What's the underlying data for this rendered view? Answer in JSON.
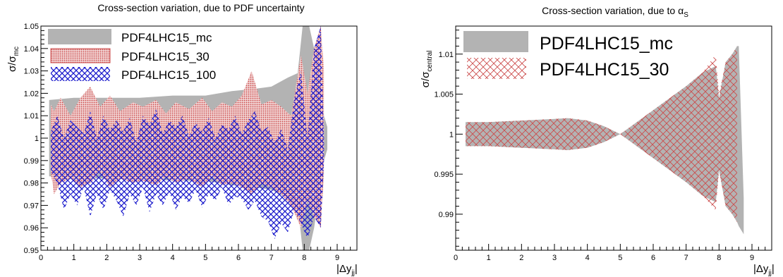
{
  "chart_data": [
    {
      "type": "area",
      "title": "Cross-section variation, due to PDF uncertainty",
      "xlabel": "|Δy_jj|",
      "ylabel": "σ/σ_mc",
      "xlim": [
        0,
        9.6
      ],
      "ylim": [
        0.95,
        1.05
      ],
      "x_ticks": [
        "0",
        "1",
        "2",
        "3",
        "4",
        "5",
        "6",
        "7",
        "8",
        "9"
      ],
      "y_ticks": [
        "0.95",
        "0.96",
        "0.97",
        "0.98",
        "0.99",
        "1",
        "1.01",
        "1.02",
        "1.03",
        "1.04",
        "1.05"
      ],
      "legend_position": "top-left",
      "series": [
        {
          "name": "PDF4LHC15_mc",
          "fill": "#b3b3b3",
          "pattern": "solid",
          "x": [
            0.25,
            1.0,
            2.0,
            3.0,
            4.0,
            5.0,
            5.8,
            6.5,
            7.0,
            7.5,
            7.8,
            7.95,
            8.05,
            8.15,
            8.3,
            8.45,
            8.6,
            8.7
          ],
          "high": [
            1.017,
            1.018,
            1.018,
            1.018,
            1.019,
            1.019,
            1.021,
            1.022,
            1.023,
            1.027,
            1.029,
            1.05,
            1.05,
            1.05,
            1.04,
            1.025,
            1.01,
            1.005
          ],
          "low": [
            0.983,
            0.982,
            0.982,
            0.982,
            0.981,
            0.981,
            0.979,
            0.978,
            0.977,
            0.973,
            0.971,
            0.95,
            0.95,
            0.95,
            0.96,
            0.975,
            0.99,
            0.995
          ]
        },
        {
          "name": "PDF4LHC15_30",
          "fill": "#cc4c4c",
          "pattern": "dots",
          "x": [
            0.3,
            0.4,
            0.6,
            0.9,
            1.2,
            1.5,
            1.8,
            2.1,
            2.4,
            2.8,
            3.1,
            3.5,
            3.8,
            4.1,
            4.5,
            4.9,
            5.2,
            5.5,
            5.8,
            6.1,
            6.4,
            6.7,
            7.0,
            7.3,
            7.6,
            7.9,
            8.1,
            8.3,
            8.5,
            8.6
          ],
          "high": [
            1.015,
            1.012,
            1.018,
            1.01,
            1.018,
            1.023,
            1.014,
            1.019,
            1.012,
            1.016,
            1.014,
            1.017,
            1.011,
            1.016,
            1.013,
            1.018,
            1.012,
            1.016,
            1.014,
            1.019,
            1.03,
            1.015,
            1.017,
            1.014,
            1.01,
            1.037,
            1.02,
            1.04,
            1.05,
            1.03
          ],
          "low": [
            0.985,
            0.975,
            0.98,
            0.982,
            0.978,
            0.98,
            0.985,
            0.978,
            0.982,
            0.98,
            0.981,
            0.979,
            0.983,
            0.98,
            0.982,
            0.978,
            0.983,
            0.979,
            0.98,
            0.978,
            0.975,
            0.98,
            0.978,
            0.975,
            0.97,
            0.96,
            0.972,
            0.965,
            0.96,
            0.985
          ]
        },
        {
          "name": "PDF4LHC15_100",
          "fill": "#1a1acc",
          "pattern": "crosshatch",
          "x": [
            0.3,
            0.5,
            0.7,
            0.9,
            1.1,
            1.3,
            1.5,
            1.7,
            1.9,
            2.1,
            2.3,
            2.5,
            2.7,
            2.9,
            3.1,
            3.3,
            3.5,
            3.7,
            3.9,
            4.1,
            4.3,
            4.5,
            4.7,
            4.9,
            5.1,
            5.3,
            5.5,
            5.7,
            5.9,
            6.1,
            6.3,
            6.5,
            6.7,
            6.9,
            7.1,
            7.3,
            7.5,
            7.7,
            7.9,
            8.1,
            8.3,
            8.5,
            8.6
          ],
          "high": [
            1.003,
            1.01,
            1.0,
            1.008,
            1.005,
            1.002,
            1.012,
            1.0,
            1.01,
            1.004,
            1.008,
            1.003,
            1.009,
            0.998,
            1.01,
            1.006,
            1.013,
            1.002,
            1.008,
            1.005,
            1.01,
            1.001,
            1.007,
            1.003,
            1.009,
            1.0,
            1.006,
            1.004,
            1.01,
            1.002,
            1.008,
            1.012,
            1.003,
            1.005,
            0.998,
            1.004,
            0.995,
            1.018,
            1.03,
            1.0,
            1.04,
            1.05,
            1.0
          ],
          "low": [
            0.985,
            0.98,
            0.968,
            0.975,
            0.97,
            0.978,
            0.965,
            0.975,
            0.968,
            0.977,
            0.972,
            0.965,
            0.975,
            0.97,
            0.978,
            0.967,
            0.975,
            0.97,
            0.976,
            0.968,
            0.974,
            0.971,
            0.977,
            0.969,
            0.975,
            0.972,
            0.978,
            0.97,
            0.974,
            0.973,
            0.968,
            0.972,
            0.965,
            0.963,
            0.955,
            0.962,
            0.958,
            0.968,
            0.962,
            0.955,
            0.965,
            0.96,
            0.99
          ]
        }
      ]
    },
    {
      "type": "area",
      "title": "Cross-section variation, due to α_S",
      "xlabel": "|Δy_jj|",
      "ylabel": "σ/σ_central",
      "xlim": [
        0,
        9.6
      ],
      "ylim": [
        0.9855,
        1.0135
      ],
      "x_ticks": [
        "0",
        "1",
        "2",
        "3",
        "4",
        "5",
        "6",
        "7",
        "8",
        "9"
      ],
      "y_ticks": [
        "0.99",
        "0.995",
        "1",
        "1.005",
        "1.01"
      ],
      "legend_position": "top-left",
      "series": [
        {
          "name": "PDF4LHC15_mc",
          "fill": "#b3b3b3",
          "pattern": "solid",
          "x": [
            0.3,
            1.0,
            2.0,
            3.0,
            3.4,
            4.0,
            4.5,
            5.0,
            5.5,
            6.0,
            6.5,
            7.0,
            7.5,
            7.9,
            8.0,
            8.2,
            8.4,
            8.55,
            8.6,
            8.75
          ],
          "high": [
            1.0015,
            1.0015,
            1.0017,
            1.0019,
            1.002,
            1.0017,
            1.001,
            1.0,
            1.0015,
            1.003,
            1.0045,
            1.006,
            1.0077,
            1.0085,
            1.0045,
            1.009,
            1.01,
            1.011,
            1.011,
            0.992
          ],
          "low": [
            0.9985,
            0.9985,
            0.9983,
            0.9981,
            0.998,
            0.9983,
            0.999,
            1.0,
            0.9985,
            0.997,
            0.9955,
            0.994,
            0.9923,
            0.9915,
            0.9955,
            0.991,
            0.99,
            0.989,
            0.9885,
            0.9875
          ]
        },
        {
          "name": "PDF4LHC15_30",
          "fill": "#cc4c4c",
          "pattern": "crosshatch",
          "x": [
            0.3,
            1.0,
            2.0,
            3.0,
            3.4,
            4.0,
            4.5,
            5.0,
            5.5,
            6.0,
            6.5,
            7.0,
            7.5,
            7.9,
            8.0,
            8.2,
            8.4,
            8.55
          ],
          "high": [
            1.0015,
            1.0015,
            1.0017,
            1.0019,
            1.002,
            1.0017,
            1.001,
            1.0,
            1.0015,
            1.003,
            1.0045,
            1.006,
            1.0077,
            1.01,
            1.005,
            1.009,
            1.01,
            1.011
          ],
          "low": [
            0.9985,
            0.9985,
            0.9983,
            0.9981,
            0.998,
            0.9983,
            0.999,
            1.0,
            0.9985,
            0.997,
            0.9955,
            0.994,
            0.9923,
            0.9905,
            0.9955,
            0.991,
            0.99,
            0.989
          ]
        }
      ]
    }
  ]
}
